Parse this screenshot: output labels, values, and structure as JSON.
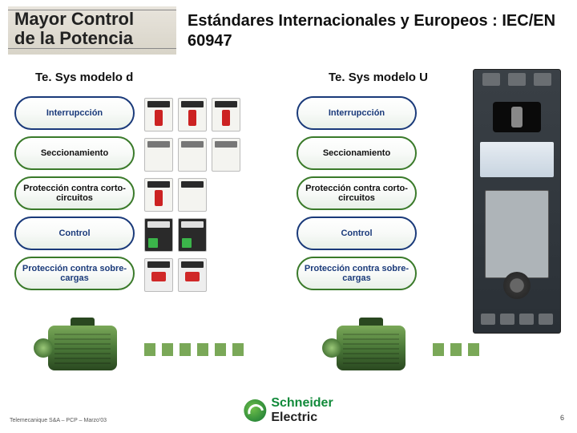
{
  "header": {
    "logo_line1": "Mayor Control",
    "logo_line2": "de la Potencia",
    "subtitle": "Estándares Internacionales y Europeos : IEC/EN 60947"
  },
  "columns": {
    "left_title": "Te. Sys modelo d",
    "right_title": "Te. Sys modelo U"
  },
  "pills": [
    {
      "label": "Interrupcción",
      "border": "#1a3a7a",
      "text": "#1a3a7a"
    },
    {
      "label": "Seccionamiento",
      "border": "#3a7a2a",
      "text": "#111111"
    },
    {
      "label": "Protección contra corto-circuitos",
      "border": "#3a7a2a",
      "text": "#111111"
    },
    {
      "label": "Control",
      "border": "#1a3a7a",
      "text": "#1a3a7a"
    },
    {
      "label": "Protección contra sobre-cargas",
      "border": "#3a7a2a",
      "text": "#1a3a7a"
    }
  ],
  "footer": {
    "brand_a": "Schneider",
    "brand_b": "Electric",
    "left_note": "Telemecanique S&A – PCP – Marzo'03",
    "page": "6"
  },
  "colors": {
    "green_accent": "#3bb44a",
    "motor_green": "#4a7838",
    "device_dark": "#2a3036"
  }
}
